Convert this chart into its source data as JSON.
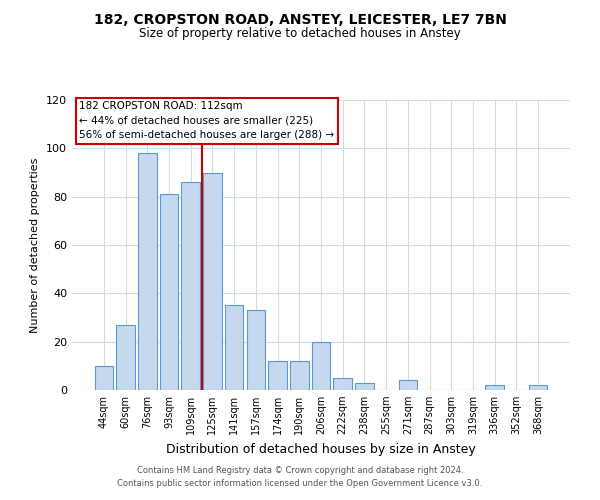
{
  "title": "182, CROPSTON ROAD, ANSTEY, LEICESTER, LE7 7BN",
  "subtitle": "Size of property relative to detached houses in Anstey",
  "xlabel": "Distribution of detached houses by size in Anstey",
  "ylabel": "Number of detached properties",
  "bar_labels": [
    "44sqm",
    "60sqm",
    "76sqm",
    "93sqm",
    "109sqm",
    "125sqm",
    "141sqm",
    "157sqm",
    "174sqm",
    "190sqm",
    "206sqm",
    "222sqm",
    "238sqm",
    "255sqm",
    "271sqm",
    "287sqm",
    "303sqm",
    "319sqm",
    "336sqm",
    "352sqm",
    "368sqm"
  ],
  "bar_values": [
    10,
    27,
    98,
    81,
    86,
    90,
    35,
    33,
    12,
    12,
    20,
    5,
    3,
    0,
    4,
    0,
    0,
    0,
    2,
    0,
    2
  ],
  "bar_color": "#c5d8ed",
  "bar_edge_color": "#5b9bd5",
  "ylim": [
    0,
    120
  ],
  "yticks": [
    0,
    20,
    40,
    60,
    80,
    100,
    120
  ],
  "property_bin_index": 4,
  "vline_color": "#cc0000",
  "annotation_text_line1": "182 CROPSTON ROAD: 112sqm",
  "annotation_text_line2": "← 44% of detached houses are smaller (225)",
  "annotation_text_line3": "56% of semi-detached houses are larger (288) →",
  "annotation_box_color": "#ffffff",
  "annotation_box_edge": "#cc0000",
  "footer_line1": "Contains HM Land Registry data © Crown copyright and database right 2024.",
  "footer_line2": "Contains public sector information licensed under the Open Government Licence v3.0.",
  "background_color": "#ffffff",
  "grid_color": "#d0dce8"
}
